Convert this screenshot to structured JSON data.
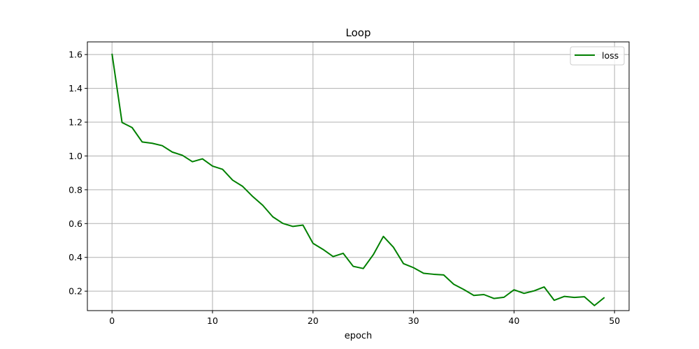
{
  "chart_data": {
    "type": "line",
    "title": "Loop",
    "xlabel": "epoch",
    "ylabel": "",
    "xlim": [
      -2.45,
      51.45
    ],
    "ylim": [
      0.085,
      1.675
    ],
    "xticks": [
      0,
      10,
      20,
      30,
      40,
      50
    ],
    "xtick_labels": [
      "0",
      "10",
      "20",
      "30",
      "40",
      "50"
    ],
    "yticks": [
      0.2,
      0.4,
      0.6,
      0.8,
      1.0,
      1.2,
      1.4,
      1.6
    ],
    "ytick_labels": [
      "0.2",
      "0.4",
      "0.6",
      "0.8",
      "1.0",
      "1.2",
      "1.4",
      "1.6"
    ],
    "grid": true,
    "legend_position": "top-right",
    "x": [
      0,
      1,
      2,
      3,
      4,
      5,
      6,
      7,
      8,
      9,
      10,
      11,
      12,
      13,
      14,
      15,
      16,
      17,
      18,
      19,
      20,
      21,
      22,
      23,
      24,
      25,
      26,
      27,
      28,
      29,
      30,
      31,
      32,
      33,
      34,
      35,
      36,
      37,
      38,
      39,
      40,
      41,
      42,
      43,
      44,
      45,
      46,
      47,
      48,
      49
    ],
    "series": [
      {
        "name": "loss",
        "color": "#008000",
        "values": [
          1.605,
          1.198,
          1.168,
          1.083,
          1.075,
          1.061,
          1.023,
          1.004,
          0.966,
          0.983,
          0.94,
          0.921,
          0.857,
          0.82,
          0.76,
          0.708,
          0.64,
          0.601,
          0.583,
          0.591,
          0.483,
          0.447,
          0.405,
          0.424,
          0.347,
          0.334,
          0.416,
          0.524,
          0.46,
          0.363,
          0.339,
          0.306,
          0.3,
          0.296,
          0.241,
          0.21,
          0.175,
          0.18,
          0.157,
          0.164,
          0.208,
          0.187,
          0.202,
          0.225,
          0.146,
          0.169,
          0.163,
          0.167,
          0.115,
          0.163
        ]
      }
    ]
  }
}
